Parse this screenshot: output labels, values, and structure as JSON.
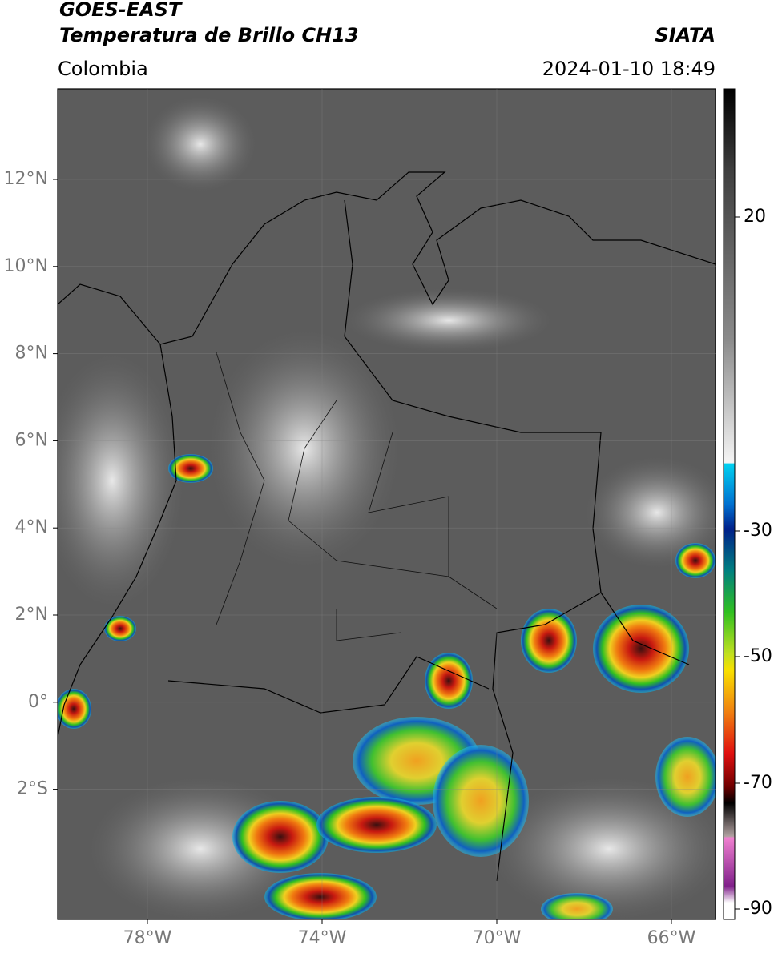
{
  "header": {
    "satellite": "GOES-EAST",
    "product": "Temperatura de Brillo CH13",
    "region": "Colombia",
    "source": "SIATA",
    "timestamp": "2024-01-10 18:49"
  },
  "map": {
    "lat_labels": [
      "12°N",
      "10°N",
      "8°N",
      "6°N",
      "4°N",
      "2°N",
      "0°",
      "2°S"
    ],
    "lon_labels": [
      "78°W",
      "74°W",
      "70°W",
      "66°W"
    ]
  },
  "colorbar": {
    "tick_labels": [
      20,
      -30,
      -50,
      -70,
      -90
    ]
  }
}
